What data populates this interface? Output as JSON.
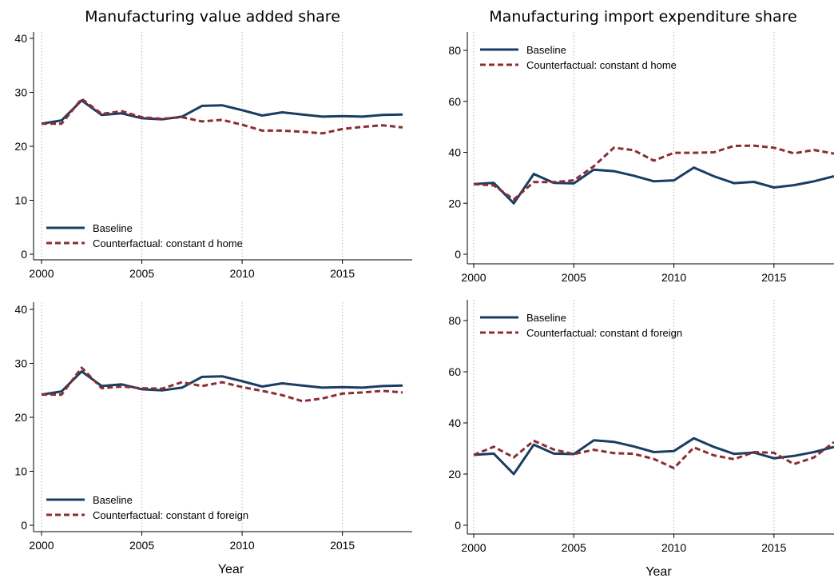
{
  "chart_data": [
    {
      "type": "line",
      "title": "Manufacturing value added share",
      "xlabel": "",
      "ylim": [
        0,
        40
      ],
      "yticks": [
        0,
        10,
        20,
        30,
        40
      ],
      "xticks": [
        2000,
        2005,
        2010,
        2015
      ],
      "x": [
        2000,
        2001,
        2002,
        2003,
        2004,
        2005,
        2006,
        2007,
        2008,
        2009,
        2010,
        2011,
        2012,
        2013,
        2014,
        2015,
        2016,
        2017,
        2018
      ],
      "legend_position": "bottom-left",
      "series": [
        {
          "name": "Baseline",
          "style": "solid",
          "color": "#1a3d63",
          "values": [
            24.2,
            24.8,
            28.5,
            25.8,
            26.1,
            25.2,
            25.0,
            25.5,
            27.5,
            27.6,
            26.7,
            25.7,
            26.3,
            25.9,
            25.5,
            25.6,
            25.5,
            25.8,
            25.9
          ]
        },
        {
          "name": "Counterfactual: constant d home",
          "style": "dashed",
          "color": "#8b2e34",
          "values": [
            24.2,
            24.2,
            28.8,
            26.0,
            26.5,
            25.4,
            25.1,
            25.4,
            24.6,
            24.9,
            24.0,
            22.9,
            22.9,
            22.7,
            22.4,
            23.2,
            23.6,
            23.9,
            23.5
          ]
        }
      ]
    },
    {
      "type": "line",
      "title": "Manufacturing import expenditure share",
      "xlabel": "",
      "ylim": [
        0,
        80
      ],
      "yticks": [
        0,
        20,
        40,
        60,
        80
      ],
      "xticks": [
        2000,
        2005,
        2010,
        2015
      ],
      "x": [
        2000,
        2001,
        2002,
        2003,
        2004,
        2005,
        2006,
        2007,
        2008,
        2009,
        2010,
        2011,
        2012,
        2013,
        2014,
        2015,
        2016,
        2017,
        2018
      ],
      "legend_position": "top-left",
      "series": [
        {
          "name": "Baseline",
          "style": "solid",
          "color": "#1a3d63",
          "values": [
            27.5,
            28.0,
            20.0,
            31.5,
            28.0,
            27.8,
            33.2,
            32.6,
            30.8,
            28.6,
            29.0,
            34.0,
            30.6,
            27.9,
            28.4,
            26.2,
            27.1,
            28.6,
            30.6
          ]
        },
        {
          "name": "Counterfactual: constant d home",
          "style": "dashed",
          "color": "#8b2e34",
          "values": [
            27.5,
            27.0,
            21.5,
            28.3,
            28.3,
            29.0,
            34.5,
            41.8,
            40.8,
            36.7,
            39.8,
            39.8,
            40.0,
            42.5,
            42.6,
            41.8,
            39.6,
            40.9,
            39.5
          ]
        }
      ]
    },
    {
      "type": "line",
      "title": "",
      "xlabel": "Year",
      "ylim": [
        0,
        40
      ],
      "yticks": [
        0,
        10,
        20,
        30,
        40
      ],
      "xticks": [
        2000,
        2005,
        2010,
        2015
      ],
      "x": [
        2000,
        2001,
        2002,
        2003,
        2004,
        2005,
        2006,
        2007,
        2008,
        2009,
        2010,
        2011,
        2012,
        2013,
        2014,
        2015,
        2016,
        2017,
        2018
      ],
      "legend_position": "bottom-left",
      "series": [
        {
          "name": "Baseline",
          "style": "solid",
          "color": "#1a3d63",
          "values": [
            24.2,
            24.8,
            28.5,
            25.8,
            26.1,
            25.2,
            25.0,
            25.5,
            27.5,
            27.6,
            26.7,
            25.7,
            26.3,
            25.9,
            25.5,
            25.6,
            25.5,
            25.8,
            25.9
          ]
        },
        {
          "name": "Counterfactual: constant d foreign",
          "style": "dashed",
          "color": "#8b2e34",
          "values": [
            24.2,
            24.2,
            29.2,
            25.4,
            25.7,
            25.4,
            25.3,
            26.5,
            25.8,
            26.5,
            25.6,
            24.9,
            24.1,
            23.0,
            23.5,
            24.4,
            24.6,
            24.9,
            24.6
          ]
        }
      ]
    },
    {
      "type": "line",
      "title": "",
      "xlabel": "Year",
      "ylim": [
        0,
        80
      ],
      "yticks": [
        0,
        20,
        40,
        60,
        80
      ],
      "xticks": [
        2000,
        2005,
        2010,
        2015
      ],
      "x": [
        2000,
        2001,
        2002,
        2003,
        2004,
        2005,
        2006,
        2007,
        2008,
        2009,
        2010,
        2011,
        2012,
        2013,
        2014,
        2015,
        2016,
        2017,
        2018
      ],
      "legend_position": "top-left",
      "series": [
        {
          "name": "Baseline",
          "style": "solid",
          "color": "#1a3d63",
          "values": [
            27.5,
            28.0,
            20.0,
            31.5,
            28.0,
            27.8,
            33.2,
            32.6,
            30.8,
            28.6,
            29.0,
            34.0,
            30.6,
            27.9,
            28.4,
            26.2,
            27.1,
            28.6,
            30.6
          ]
        },
        {
          "name": "Counterfactual: constant d foreign",
          "style": "dashed",
          "color": "#8b2e34",
          "values": [
            27.5,
            30.7,
            26.5,
            33.0,
            29.6,
            27.8,
            29.5,
            28.2,
            27.9,
            25.9,
            22.3,
            30.4,
            27.3,
            25.8,
            28.6,
            28.3,
            23.9,
            26.5,
            32.5
          ]
        }
      ]
    }
  ]
}
